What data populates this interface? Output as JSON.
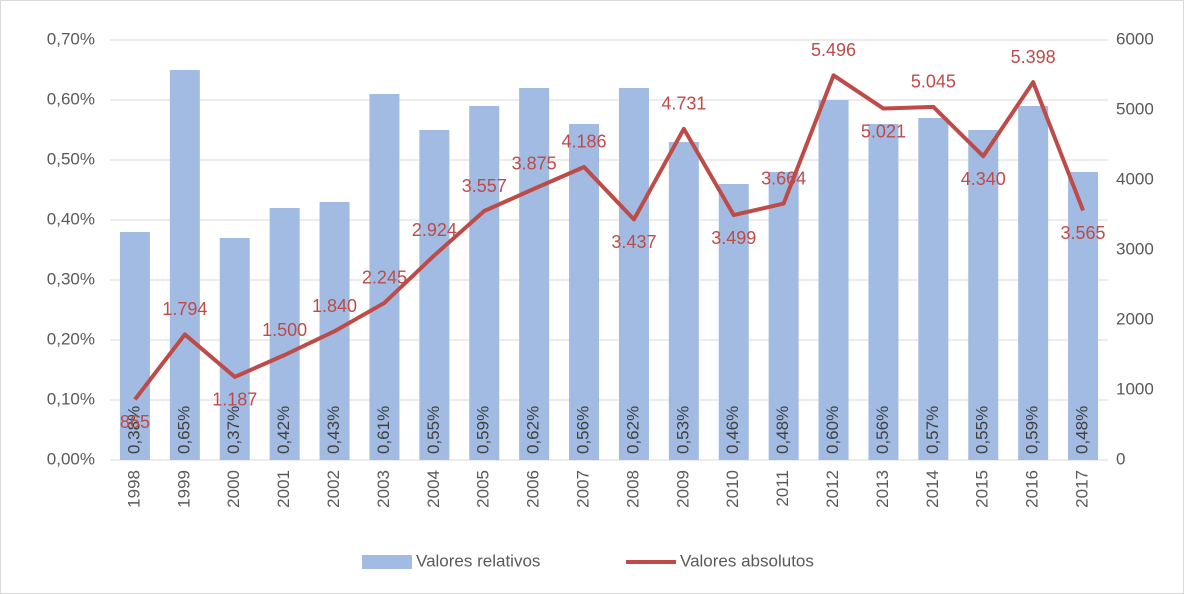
{
  "chart_data": {
    "type": "bar",
    "categories": [
      "1998",
      "1999",
      "2000",
      "2001",
      "2002",
      "2003",
      "2004",
      "2005",
      "2006",
      "2007",
      "2008",
      "2009",
      "2010",
      "2011",
      "2012",
      "2013",
      "2014",
      "2015",
      "2016",
      "2017"
    ],
    "series": [
      {
        "name": "Valores relativos",
        "type": "bar",
        "color": "#a1bbe2",
        "values": [
          0.38,
          0.65,
          0.37,
          0.42,
          0.43,
          0.61,
          0.55,
          0.59,
          0.62,
          0.56,
          0.62,
          0.53,
          0.46,
          0.48,
          0.6,
          0.56,
          0.57,
          0.55,
          0.59,
          0.48
        ],
        "value_labels": [
          "0,38%",
          "0,65%",
          "0,37%",
          "0,42%",
          "0,43%",
          "0,61%",
          "0,55%",
          "0,59%",
          "0,62%",
          "0,56%",
          "0,62%",
          "0,53%",
          "0,46%",
          "0,48%",
          "0,60%",
          "0,56%",
          "0,57%",
          "0,55%",
          "0,59%",
          "0,48%"
        ]
      },
      {
        "name": "Valores absolutos",
        "type": "line",
        "axis": "y2",
        "color": "#be4b48",
        "values": [
          865,
          1794,
          1187,
          1500,
          1840,
          2245,
          2924,
          3557,
          3875,
          4186,
          3437,
          4731,
          3499,
          3664,
          5496,
          5021,
          5045,
          4340,
          5398,
          3565
        ],
        "value_labels": [
          "865",
          "1.794",
          "1.187",
          "1.500",
          "1.840",
          "2.245",
          "2.924",
          "3.557",
          "3.875",
          "4.186",
          "3.437",
          "4.731",
          "3.499",
          "3.664",
          "5.496",
          "5.021",
          "5.045",
          "4.340",
          "5.398",
          "3.565"
        ]
      }
    ],
    "ylim": [
      0,
      0.7
    ],
    "yticks": [
      {
        "value": 0,
        "label": "0,00%"
      },
      {
        "value": 0.1,
        "label": "0,10%"
      },
      {
        "value": 0.2,
        "label": "0,20%"
      },
      {
        "value": 0.3,
        "label": "0,30%"
      },
      {
        "value": 0.4,
        "label": "0,40%"
      },
      {
        "value": 0.5,
        "label": "0,50%"
      },
      {
        "value": 0.6,
        "label": "0,60%"
      },
      {
        "value": 0.7,
        "label": "0,70%"
      }
    ],
    "y2lim": [
      0,
      6000
    ],
    "y2ticks": [
      0,
      1000,
      2000,
      3000,
      4000,
      5000,
      6000
    ],
    "grid": true
  }
}
